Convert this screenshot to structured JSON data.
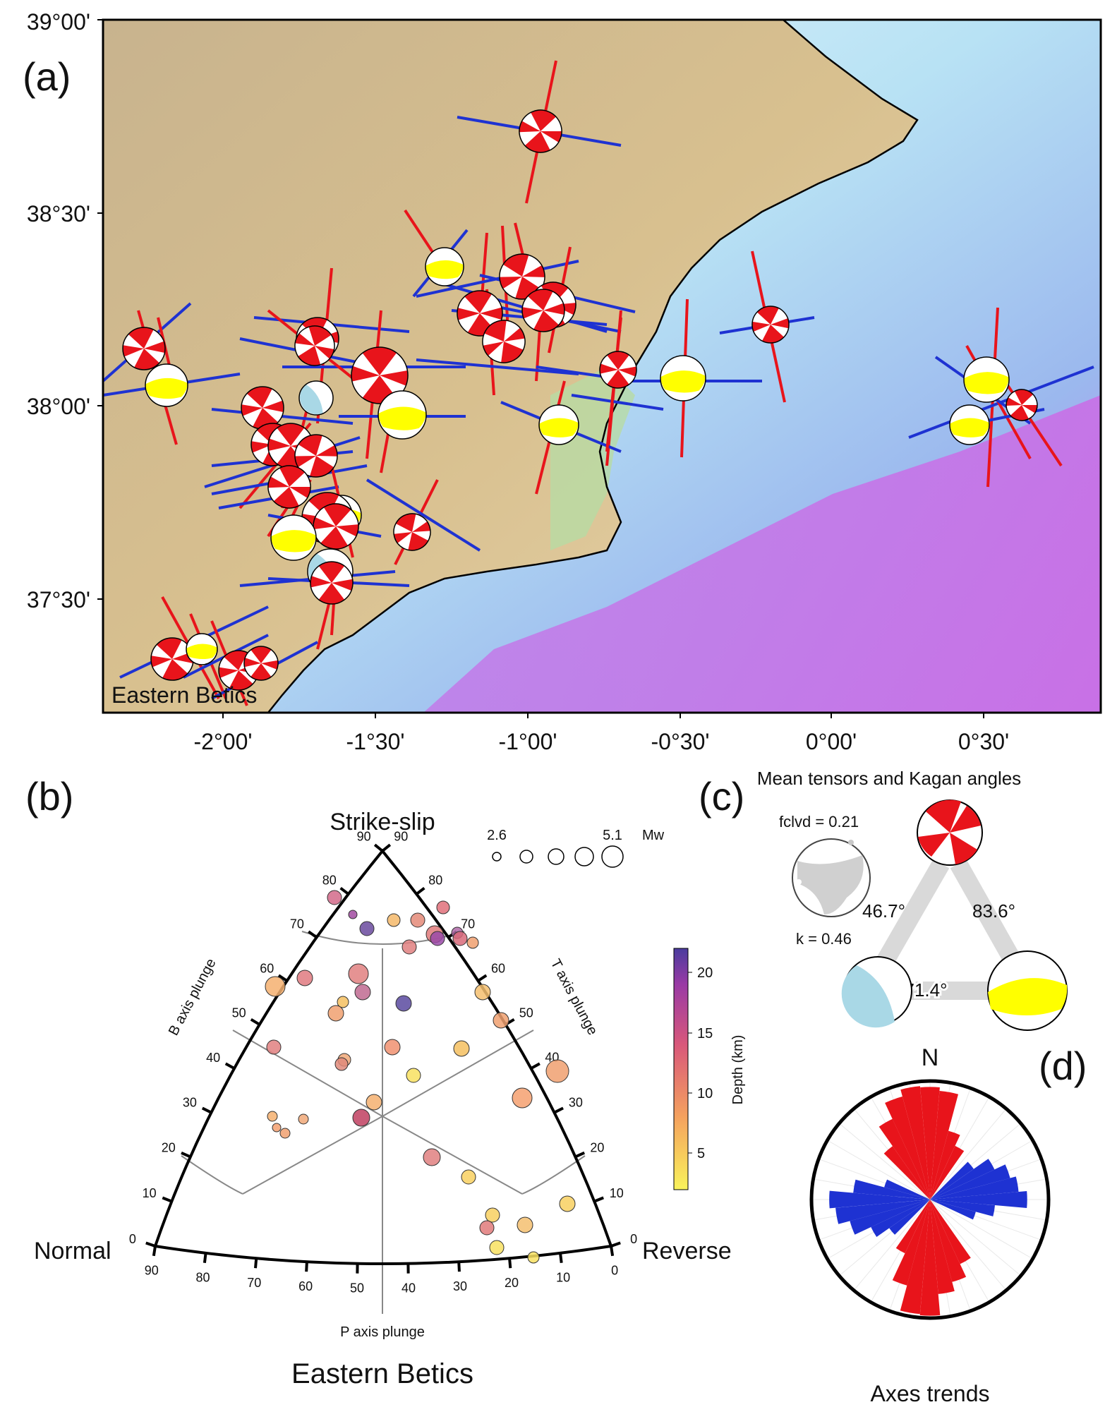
{
  "panel_a": {
    "letter": "(a)",
    "region_label": "Eastern Betics",
    "lat_ticks": [
      "39°00'",
      "38°30'",
      "38°00'",
      "37°30'"
    ],
    "lon_ticks": [
      "-2°00'",
      "-1°30'",
      "-1°00'",
      "-0°30'",
      "0°00'",
      "0°30'"
    ],
    "colors": {
      "compression_axis": "#e8141b",
      "extension_axis": "#1e32d2",
      "strike_slip": "#e8141b",
      "normal": "#a9d8e6",
      "reverse": "#ffff00"
    }
  },
  "panel_b": {
    "letter": "(b)",
    "title": "Eastern Betics",
    "corner_top": "Strike-slip",
    "corner_left": "Normal",
    "corner_right": "Reverse",
    "left_axis_label": "B axis plunge",
    "right_axis_label": "T axis plunge",
    "bottom_axis_label": "P axis plunge",
    "left_ticks": [
      "0",
      "10",
      "20",
      "30",
      "40",
      "50",
      "60",
      "70",
      "80",
      "90"
    ],
    "right_ticks": [
      "0",
      "10",
      "20",
      "30",
      "40",
      "50",
      "60",
      "70",
      "80",
      "90"
    ],
    "bottom_ticks": [
      "90",
      "80",
      "70",
      "60",
      "50",
      "40",
      "30",
      "20",
      "10",
      "0"
    ],
    "size_legend": {
      "min": "2.6",
      "max": "5.1",
      "unit": "Mw"
    },
    "colorbar": {
      "label": "Depth (km)",
      "ticks": [
        "5",
        "10",
        "15",
        "20"
      ],
      "range": [
        2,
        22
      ]
    }
  },
  "panel_c": {
    "letter": "(c)",
    "title": "Mean tensors and Kagan angles",
    "fclvd": "fclvd = 0.21",
    "k": "k = 0.46",
    "angles": [
      "46.7°",
      "83.6°",
      "71.4°"
    ]
  },
  "panel_d": {
    "letter": "(d)",
    "north": "N",
    "title": "Axes trends"
  }
}
